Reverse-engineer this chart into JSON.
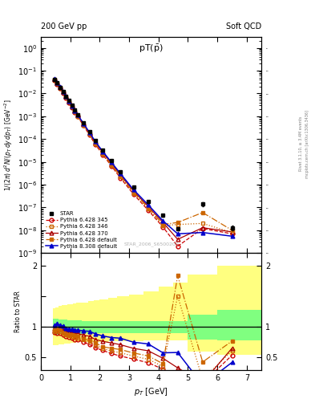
{
  "header_left": "200 GeV pp",
  "header_right": "Soft QCD",
  "title_main": "pT(¯p)",
  "ylabel_main": "1/(2π) d²N/(p_T dy dp_T) [GeV⁻²]",
  "ylabel_ratio": "Ratio to STAR",
  "xlabel": "p_T [GeV]",
  "watermark": "STAR_2006_S6500200",
  "rivet_label": "Rivet 3.1.10, ≥ 3.4M events",
  "arxiv_label": "mcplots.cern.ch [arXiv:1306.3436]",
  "star_x": [
    0.45,
    0.55,
    0.65,
    0.75,
    0.85,
    0.95,
    1.05,
    1.15,
    1.25,
    1.45,
    1.65,
    1.85,
    2.1,
    2.4,
    2.7,
    3.15,
    3.65,
    4.15,
    4.65,
    5.5,
    6.5
  ],
  "star_y": [
    0.042,
    0.029,
    0.019,
    0.012,
    0.0078,
    0.0048,
    0.003,
    0.0019,
    0.0012,
    0.00052,
    0.00021,
    8.8e-05,
    3.4e-05,
    1.15e-05,
    3.8e-06,
    8e-07,
    1.8e-07,
    4.5e-08,
    1.2e-08,
    1.4e-07,
    1.3e-08
  ],
  "star_yerr": [
    0.003,
    0.002,
    0.0012,
    0.0008,
    0.0005,
    0.0003,
    0.0002,
    0.00012,
    8e-05,
    3.5e-05,
    1.5e-05,
    6e-06,
    2.5e-06,
    9e-07,
    3e-07,
    7e-08,
    1.8e-08,
    5e-09,
    2e-09,
    2.5e-08,
    3e-09
  ],
  "p345_x": [
    0.45,
    0.55,
    0.65,
    0.75,
    0.85,
    0.95,
    1.05,
    1.15,
    1.25,
    1.45,
    1.65,
    1.85,
    2.1,
    2.4,
    2.7,
    3.15,
    3.65,
    4.15,
    4.65,
    5.5,
    6.5
  ],
  "p345_y": [
    0.038,
    0.026,
    0.017,
    0.0105,
    0.0066,
    0.004,
    0.00245,
    0.00152,
    0.00095,
    0.00039,
    0.00015,
    5.8e-05,
    2.1e-05,
    6.5e-06,
    2e-06,
    3.8e-07,
    7.5e-08,
    1.4e-08,
    2e-09,
    1.2e-08,
    7e-09
  ],
  "p346_x": [
    0.45,
    0.55,
    0.65,
    0.75,
    0.85,
    0.95,
    1.05,
    1.15,
    1.25,
    1.45,
    1.65,
    1.85,
    2.1,
    2.4,
    2.7,
    3.15,
    3.65,
    4.15,
    4.65,
    5.5,
    6.5
  ],
  "p346_y": [
    0.039,
    0.027,
    0.0175,
    0.0108,
    0.0068,
    0.0041,
    0.00255,
    0.00158,
    0.00099,
    0.00041,
    0.00016,
    6.2e-05,
    2.2e-05,
    7e-06,
    2.2e-06,
    4.2e-07,
    8.5e-08,
    1.6e-08,
    1.8e-08,
    2e-08,
    8e-09
  ],
  "p370_x": [
    0.45,
    0.55,
    0.65,
    0.75,
    0.85,
    0.95,
    1.05,
    1.15,
    1.25,
    1.45,
    1.65,
    1.85,
    2.1,
    2.4,
    2.7,
    3.15,
    3.65,
    4.15,
    4.65,
    5.5,
    6.5
  ],
  "p370_y": [
    0.041,
    0.0285,
    0.0185,
    0.0114,
    0.0072,
    0.0044,
    0.00272,
    0.0017,
    0.00107,
    0.00045,
    0.000178,
    7e-05,
    2.6e-05,
    8.5e-06,
    2.7e-06,
    5.2e-07,
    1.1e-07,
    2.2e-08,
    4e-09,
    1.3e-08,
    8.5e-09
  ],
  "pdef_x": [
    0.45,
    0.55,
    0.65,
    0.75,
    0.85,
    0.95,
    1.05,
    1.15,
    1.25,
    1.45,
    1.65,
    1.85,
    2.1,
    2.4,
    2.7,
    3.15,
    3.65,
    4.15,
    4.65,
    5.5,
    6.5
  ],
  "pdef_y": [
    0.04,
    0.028,
    0.018,
    0.011,
    0.0069,
    0.0042,
    0.0026,
    0.00162,
    0.00102,
    0.00042,
    0.000165,
    6.5e-05,
    2.3e-05,
    7.5e-06,
    2.4e-06,
    4.6e-07,
    9.5e-08,
    1.8e-08,
    2.2e-08,
    6e-08,
    1e-08
  ],
  "p8_x": [
    0.45,
    0.55,
    0.65,
    0.75,
    0.85,
    0.95,
    1.05,
    1.15,
    1.25,
    1.45,
    1.65,
    1.85,
    2.1,
    2.4,
    2.7,
    3.15,
    3.65,
    4.15,
    4.65,
    5.5,
    6.5
  ],
  "p8_y": [
    0.043,
    0.0305,
    0.0195,
    0.0122,
    0.0076,
    0.00465,
    0.00288,
    0.0018,
    0.00114,
    0.000485,
    0.000195,
    7.8e-05,
    2.9e-05,
    9.5e-06,
    3.1e-06,
    6e-07,
    1.3e-07,
    2.6e-08,
    7e-09,
    8e-09,
    5.5e-09
  ],
  "color_345": "#cc0000",
  "color_346": "#cc6600",
  "color_370": "#aa0000",
  "color_def": "#cc6600",
  "color_p8": "#0000cc",
  "color_star": "#000000",
  "xlim": [
    0,
    7.5
  ],
  "ylim_main": [
    1e-09,
    3
  ],
  "ylim_ratio": [
    0.3,
    2.2
  ]
}
